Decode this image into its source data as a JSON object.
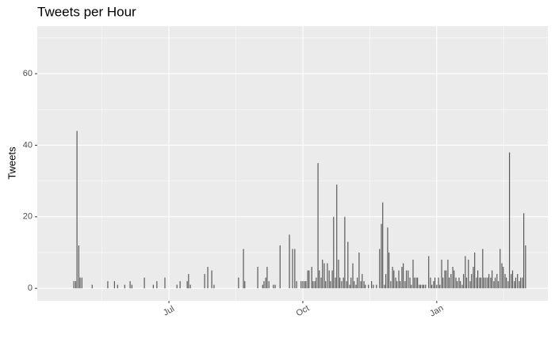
{
  "chart_data": {
    "type": "bar",
    "title": "Tweets per Hour",
    "y_label": "Tweets",
    "color": "#595959",
    "panel_color": "#ebebeb",
    "grid": true,
    "xlim": [
      4.05,
      15.49
    ],
    "xticks": [
      {
        "value": 7,
        "label": "Jul"
      },
      {
        "value": 10,
        "label": "Oct"
      },
      {
        "value": 13,
        "label": "Jan"
      }
    ],
    "minor_xticks": [
      5.5,
      8.5,
      11.5,
      14.5
    ],
    "ylim": [
      -3.5,
      73.3
    ],
    "yticks": [
      0,
      20,
      40,
      60
    ],
    "minor_yticks": [
      10,
      30,
      50,
      70
    ],
    "x": [
      4.87,
      4.91,
      4.94,
      4.98,
      5.01,
      5.05,
      5.28,
      5.63,
      5.78,
      5.85,
      6.01,
      6.13,
      6.17,
      6.45,
      6.65,
      6.73,
      6.91,
      7.18,
      7.25,
      7.41,
      7.44,
      7.48,
      7.8,
      7.87,
      7.96,
      8.01,
      8.56,
      8.67,
      8.7,
      8.99,
      9.1,
      9.13,
      9.17,
      9.2,
      9.24,
      9.34,
      9.38,
      9.49,
      9.7,
      9.77,
      9.82,
      9.86,
      9.96,
      10.0,
      10.04,
      10.07,
      10.11,
      10.14,
      10.2,
      10.23,
      10.27,
      10.3,
      10.34,
      10.37,
      10.41,
      10.44,
      10.48,
      10.51,
      10.55,
      10.59,
      10.62,
      10.66,
      10.69,
      10.73,
      10.76,
      10.8,
      10.83,
      10.87,
      10.91,
      10.94,
      10.98,
      11.01,
      11.05,
      11.08,
      11.12,
      11.15,
      11.19,
      11.22,
      11.26,
      11.3,
      11.33,
      11.37,
      11.4,
      11.47,
      11.54,
      11.58,
      11.65,
      11.72,
      11.76,
      11.79,
      11.83,
      11.86,
      11.9,
      11.93,
      11.97,
      12.01,
      12.04,
      12.08,
      12.11,
      12.15,
      12.18,
      12.22,
      12.25,
      12.29,
      12.32,
      12.36,
      12.4,
      12.43,
      12.47,
      12.5,
      12.54,
      12.57,
      12.61,
      12.64,
      12.68,
      12.71,
      12.75,
      12.82,
      12.86,
      12.89,
      12.93,
      12.96,
      13.0,
      13.04,
      13.07,
      13.11,
      13.14,
      13.18,
      13.21,
      13.25,
      13.28,
      13.32,
      13.36,
      13.39,
      13.43,
      13.46,
      13.5,
      13.53,
      13.57,
      13.6,
      13.64,
      13.67,
      13.71,
      13.75,
      13.78,
      13.82,
      13.85,
      13.89,
      13.92,
      13.96,
      13.99,
      14.03,
      14.06,
      14.1,
      14.14,
      14.17,
      14.21,
      14.24,
      14.28,
      14.31,
      14.35,
      14.38,
      14.42,
      14.46,
      14.49,
      14.53,
      14.56,
      14.6,
      14.63,
      14.67,
      14.7,
      14.74,
      14.77,
      14.81,
      14.85,
      14.88,
      14.92,
      14.95,
      14.99
    ],
    "values": [
      2,
      2,
      44,
      12,
      3,
      3,
      1,
      2,
      2,
      1,
      1,
      2,
      1,
      3,
      1,
      2,
      3,
      1,
      2,
      2,
      4,
      1,
      4,
      6,
      5,
      1,
      3,
      11,
      2,
      6,
      1,
      2,
      3,
      6,
      2,
      1,
      1,
      12,
      15,
      11,
      11,
      2,
      2,
      2,
      2,
      2,
      5,
      5,
      6,
      2,
      2,
      3,
      35,
      5,
      3,
      8,
      7,
      2,
      7,
      5,
      2,
      5,
      20,
      3,
      29,
      8,
      3,
      2,
      3,
      20,
      2,
      13,
      1,
      3,
      7,
      2,
      1,
      3,
      10,
      2,
      4,
      2,
      1,
      1,
      2,
      1,
      1,
      11,
      18,
      24,
      1,
      4,
      17,
      10,
      2,
      6,
      5,
      3,
      2,
      5,
      2,
      6,
      7,
      2,
      5,
      5,
      3,
      1,
      8,
      3,
      3,
      3,
      1,
      1,
      1,
      1,
      1,
      9,
      3,
      1,
      2,
      3,
      1,
      3,
      1,
      8,
      3,
      5,
      5,
      8,
      3,
      4,
      6,
      5,
      3,
      2,
      3,
      2,
      1,
      4,
      9,
      3,
      8,
      2,
      4,
      6,
      10,
      3,
      5,
      3,
      3,
      11,
      3,
      3,
      3,
      4,
      3,
      5,
      2,
      3,
      4,
      2,
      11,
      7,
      6,
      4,
      3,
      2,
      38,
      4,
      5,
      2,
      3,
      4,
      2,
      3,
      3,
      21,
      12
    ]
  }
}
